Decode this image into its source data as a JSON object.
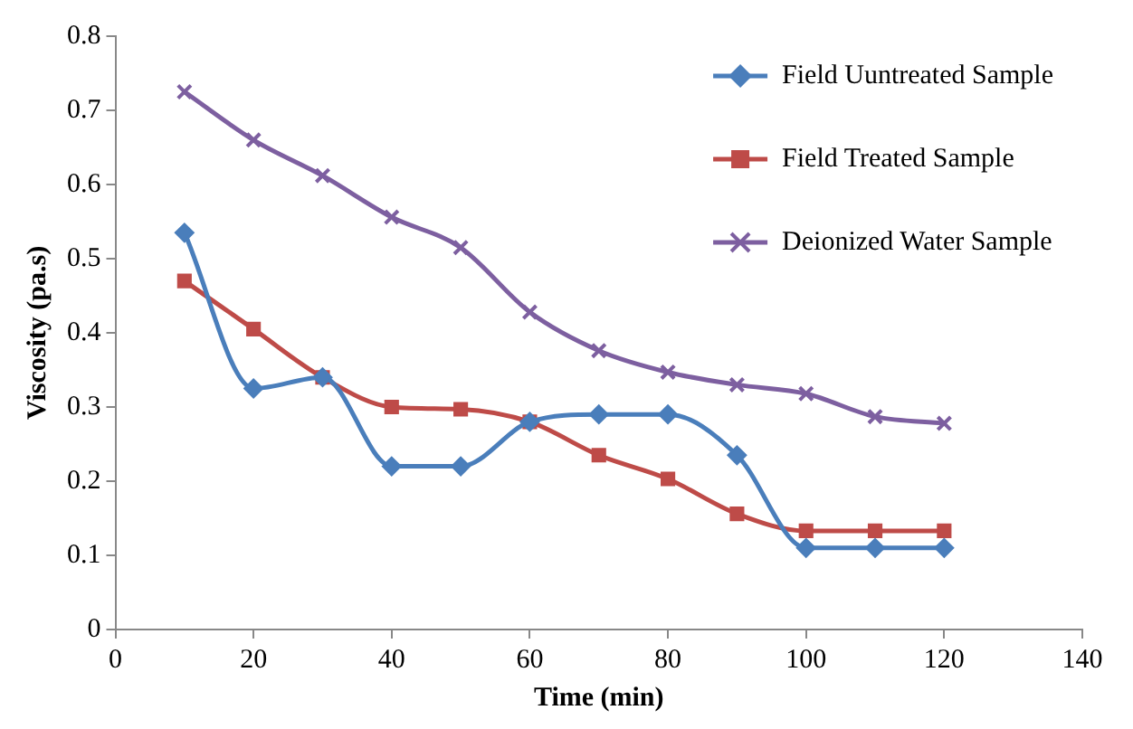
{
  "chart_data": {
    "type": "line",
    "xlabel": "Time (min)",
    "ylabel": "Viscosity (pa.s)",
    "x": [
      10,
      20,
      30,
      40,
      50,
      60,
      70,
      80,
      90,
      100,
      110,
      120
    ],
    "series": [
      {
        "name": "Field Uuntreated Sample",
        "color": "#4a7ebb",
        "marker": "diamond",
        "values": [
          0.535,
          0.325,
          0.34,
          0.22,
          0.22,
          0.28,
          0.29,
          0.29,
          0.235,
          0.11,
          0.11,
          0.11
        ]
      },
      {
        "name": "Field Treated Sample",
        "color": "#be4b48",
        "marker": "square",
        "values": [
          0.47,
          0.405,
          0.34,
          0.3,
          0.297,
          0.28,
          0.235,
          0.203,
          0.156,
          0.133,
          0.133,
          0.133
        ]
      },
      {
        "name": "Deionized Water Sample",
        "color": "#7d5fa0",
        "marker": "cross",
        "values": [
          0.725,
          0.66,
          0.612,
          0.556,
          0.515,
          0.428,
          0.376,
          0.347,
          0.33,
          0.318,
          0.287,
          0.278
        ]
      }
    ],
    "xlim": [
      0,
      140
    ],
    "xticks": [
      0,
      20,
      40,
      60,
      80,
      100,
      120,
      140
    ],
    "ylim": [
      0,
      0.8
    ],
    "yticks": [
      0,
      0.1,
      0.2,
      0.3,
      0.4,
      0.5,
      0.6,
      0.7,
      0.8
    ],
    "grid": false,
    "legend": "top right",
    "line_style": "solid"
  }
}
